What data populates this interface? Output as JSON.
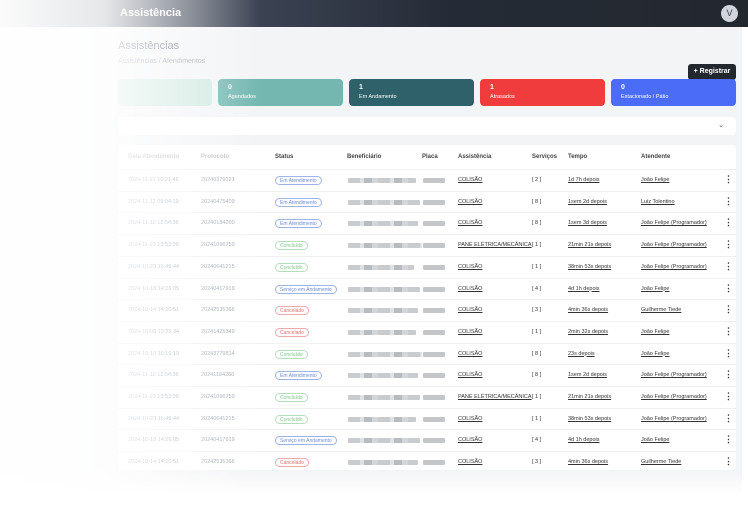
{
  "header": {
    "title": "Assistência",
    "avatar": "V"
  },
  "page": {
    "title": "Assistências",
    "breadcrumb": "Assistências / Atendimentos",
    "register_label": "+ Registrar"
  },
  "cards": [
    {
      "num": "",
      "label": "",
      "color": "#cfe8e0"
    },
    {
      "num": "0",
      "label": "Agendados",
      "color": "#73b7b0"
    },
    {
      "num": "1",
      "label": "Em Andamento",
      "color": "#2e6169"
    },
    {
      "num": "1",
      "label": "Atrasados",
      "color": "#f03c3c"
    },
    {
      "num": "0",
      "label": "Estacionado / Pátio",
      "color": "#4a6cf7"
    }
  ],
  "filter": {
    "chevron": "⌄"
  },
  "columns": [
    "Data Atendimento",
    "Protocolo",
    "Status",
    "Beneficiário",
    "Placa",
    "Assistência",
    "Serviços",
    "Tempo",
    "Atendente"
  ],
  "rows": [
    {
      "date": "2024-11-21 10:21:46",
      "protocol": "20240379121",
      "status": "Em Atendimento",
      "tone": "blue",
      "assist": "COLISÃO",
      "serv": "[ 2 ]",
      "time": "1d 7h depois",
      "agent": "João Felipe"
    },
    {
      "date": "2024-11-12 09:04:19",
      "protocol": "20240475409",
      "status": "Em Atendimento",
      "tone": "blue",
      "assist": "COLISÃO",
      "serv": "[ 8 ]",
      "time": "1sem 2d depois",
      "agent": "Luiz Tolentino"
    },
    {
      "date": "2024-11-12 12:54:36",
      "protocol": "20240184260",
      "status": "Em Atendimento",
      "tone": "blue",
      "assist": "COLISÃO",
      "serv": "[ 8 ]",
      "time": "1sem 3d depois",
      "agent": "João Felipe (Programador)"
    },
    {
      "date": "2024-11-23 13:53:09",
      "protocol": "20241096759",
      "status": "Concluído",
      "tone": "green",
      "assist": "PANE ELÉTRICA/MECÂNICA",
      "serv": "[ 1 ]",
      "time": "21min 21s depois",
      "agent": "João Felipe (Programador)"
    },
    {
      "date": "2024-10-23 15:49:44",
      "protocol": "20240641215",
      "status": "Concluído",
      "tone": "green",
      "assist": "COLISÃO",
      "serv": "[ 1 ]",
      "time": "38min 53s depois",
      "agent": "João Felipe (Programador)"
    },
    {
      "date": "2024-10-18 14:26:05",
      "protocol": "20240417919",
      "status": "Serviço em Andamento",
      "tone": "blue",
      "assist": "COLISÃO",
      "serv": "[ 4 ]",
      "time": "4d 1h depois",
      "agent": "João Felipe"
    },
    {
      "date": "2024-10-14 14:20:51",
      "protocol": "20242535366",
      "status": "Cancelado",
      "tone": "red",
      "assist": "COLISÃO",
      "serv": "[ 3 ]",
      "time": "4min 36s depois",
      "agent": "Guilherme Tiede"
    },
    {
      "date": "2024-10-09 10:25:34",
      "protocol": "20241425349",
      "status": "Cancelado",
      "tone": "red",
      "assist": "COLISÃO",
      "serv": "[ 1 ]",
      "time": "2min 32s depois",
      "agent": "João Felipe"
    },
    {
      "date": "2024-10-10 16:16:19",
      "protocol": "20243779814",
      "status": "Concluído",
      "tone": "green",
      "assist": "COLISÃO",
      "serv": "[ 8 ]",
      "time": "23s depois",
      "agent": "João Felipe"
    },
    {
      "date": "2024-11-12 12:54:36",
      "protocol": "20241184260",
      "status": "Em Atendimento",
      "tone": "blue",
      "assist": "COLISÃO",
      "serv": "[ 8 ]",
      "time": "1sem 2d depois",
      "agent": "João Felipe (Programador)"
    },
    {
      "date": "2024-11-23 13:53:09",
      "protocol": "20241096759",
      "status": "Concluído",
      "tone": "green",
      "assist": "PANE ELÉTRICA/MECÂNICA",
      "serv": "[ 1 ]",
      "time": "21min 21s depois",
      "agent": "João Felipe (Programador)"
    },
    {
      "date": "2024-10-23 15:49:44",
      "protocol": "20240641215",
      "status": "Concluído",
      "tone": "green",
      "assist": "COLISÃO",
      "serv": "[ 1 ]",
      "time": "38min 53s depois",
      "agent": "João Felipe (Programador)"
    },
    {
      "date": "2024-10-18 14:26:05",
      "protocol": "20240417919",
      "status": "Serviço em Andamento",
      "tone": "blue",
      "assist": "COLISÃO",
      "serv": "[ 4 ]",
      "time": "4d 1h depois",
      "agent": "João Felipe"
    },
    {
      "date": "2024-10-14 14:20:51",
      "protocol": "20242535366",
      "status": "Cancelado",
      "tone": "red",
      "assist": "COLISÃO",
      "serv": "[ 3 ]",
      "time": "4min 36s depois",
      "agent": "Guilherme Tiede"
    }
  ],
  "kebab": "⋮"
}
